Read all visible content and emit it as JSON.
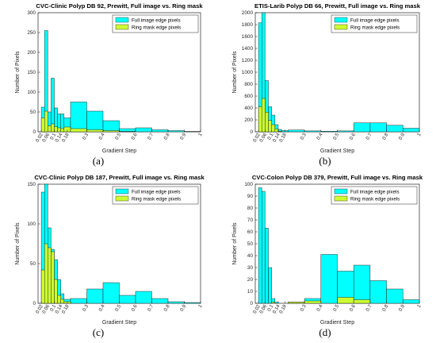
{
  "chart_data": [
    {
      "type": "bar",
      "title": "CVC-Clinic Polyp DB 92, Prewitt, Full image vs. Ring mask",
      "xlabel": "Gradient Step",
      "ylabel": "Number of Pixels",
      "caption": "(a)",
      "xlim": [
        0,
        1
      ],
      "ylim": [
        0,
        300
      ],
      "yticks": [
        0,
        50,
        100,
        150,
        200,
        250,
        300
      ],
      "xticks": [
        "0.02",
        "0.06",
        "0.1",
        "0.14",
        "0.18",
        "0.3",
        "0.4",
        "0.5",
        "0.6",
        "0.7",
        "0.8",
        "0.9",
        "1"
      ],
      "grid": false,
      "legend_position": "top-right",
      "series": [
        {
          "name": "Full image edge pixels",
          "color": "#00ffff",
          "bins": [
            [
              0.02,
              0.04,
              62
            ],
            [
              0.04,
              0.06,
              255
            ],
            [
              0.06,
              0.08,
              50
            ],
            [
              0.08,
              0.1,
              135
            ],
            [
              0.1,
              0.12,
              60
            ],
            [
              0.12,
              0.14,
              45
            ],
            [
              0.14,
              0.16,
              45
            ],
            [
              0.16,
              0.2,
              35
            ],
            [
              0.2,
              0.3,
              75
            ],
            [
              0.3,
              0.4,
              52
            ],
            [
              0.4,
              0.5,
              28
            ],
            [
              0.5,
              0.6,
              8
            ],
            [
              0.6,
              0.7,
              10
            ],
            [
              0.7,
              0.8,
              5
            ],
            [
              0.8,
              0.9,
              3
            ],
            [
              0.9,
              1.0,
              1
            ]
          ]
        },
        {
          "name": "Ring mask edge pixels",
          "color": "#ccff33",
          "bins": [
            [
              0.02,
              0.04,
              35
            ],
            [
              0.04,
              0.06,
              52
            ],
            [
              0.06,
              0.08,
              15
            ],
            [
              0.08,
              0.1,
              20
            ],
            [
              0.1,
              0.12,
              13
            ],
            [
              0.12,
              0.14,
              10
            ],
            [
              0.14,
              0.16,
              8
            ],
            [
              0.16,
              0.2,
              12
            ],
            [
              0.2,
              0.3,
              8
            ],
            [
              0.3,
              0.4,
              5
            ],
            [
              0.4,
              0.5,
              3
            ],
            [
              0.5,
              0.6,
              1
            ]
          ]
        }
      ]
    },
    {
      "type": "bar",
      "title": "ETIS-Larib Polyp DB 66, Prewitt, Full image vs. Ring mask",
      "xlabel": "Gradient Step",
      "ylabel": "Number of Pixels",
      "caption": "(b)",
      "xlim": [
        0,
        1
      ],
      "ylim": [
        0,
        2000
      ],
      "yticks": [
        0,
        200,
        400,
        600,
        800,
        1000,
        1200,
        1400,
        1600,
        1800,
        2000
      ],
      "xticks": [
        "0.02",
        "0.06",
        "0.1",
        "0.14",
        "0.18",
        "0.3",
        "0.4",
        "0.5",
        "0.6",
        "0.7",
        "0.8",
        "0.9",
        "1"
      ],
      "grid": false,
      "legend_position": "top-right",
      "series": [
        {
          "name": "Full image edge pixels",
          "color": "#00ffff",
          "bins": [
            [
              0.02,
              0.04,
              1830
            ],
            [
              0.04,
              0.06,
              2000
            ],
            [
              0.06,
              0.08,
              860
            ],
            [
              0.08,
              0.1,
              420
            ],
            [
              0.1,
              0.12,
              280
            ],
            [
              0.12,
              0.14,
              120
            ],
            [
              0.14,
              0.16,
              40
            ],
            [
              0.16,
              0.2,
              20
            ],
            [
              0.2,
              0.3,
              30
            ],
            [
              0.3,
              0.4,
              15
            ],
            [
              0.4,
              0.5,
              10
            ],
            [
              0.5,
              0.6,
              15
            ],
            [
              0.6,
              0.7,
              150
            ],
            [
              0.7,
              0.8,
              150
            ],
            [
              0.8,
              0.9,
              110
            ],
            [
              0.9,
              1.0,
              60
            ]
          ]
        },
        {
          "name": "Ring mask edge pixels",
          "color": "#ccff33",
          "bins": [
            [
              0.02,
              0.04,
              420
            ],
            [
              0.04,
              0.06,
              560
            ],
            [
              0.06,
              0.08,
              330
            ],
            [
              0.08,
              0.1,
              190
            ],
            [
              0.1,
              0.12,
              120
            ],
            [
              0.12,
              0.14,
              50
            ],
            [
              0.14,
              0.16,
              10
            ]
          ]
        }
      ]
    },
    {
      "type": "bar",
      "title": "CVC-Clinic Polyp DB 187, Prewitt, Full image vs. Ring mask",
      "xlabel": "Gradient Step",
      "ylabel": "Number of Pixels",
      "caption": "(c)",
      "xlim": [
        0,
        1
      ],
      "ylim": [
        0,
        150
      ],
      "yticks": [
        0,
        50,
        100,
        150
      ],
      "xticks": [
        "0.02",
        "0.06",
        "0.1",
        "0.14",
        "0.18",
        "0.3",
        "0.4",
        "0.5",
        "0.6",
        "0.7",
        "0.8",
        "0.9",
        "1"
      ],
      "grid": false,
      "legend_position": "top-right",
      "series": [
        {
          "name": "Full image edge pixels",
          "color": "#00ffff",
          "bins": [
            [
              0.02,
              0.04,
              140
            ],
            [
              0.04,
              0.06,
              150
            ],
            [
              0.06,
              0.08,
              95
            ],
            [
              0.08,
              0.1,
              68
            ],
            [
              0.1,
              0.12,
              55
            ],
            [
              0.12,
              0.14,
              30
            ],
            [
              0.14,
              0.16,
              12
            ],
            [
              0.16,
              0.2,
              5
            ],
            [
              0.2,
              0.3,
              6
            ],
            [
              0.3,
              0.4,
              18
            ],
            [
              0.4,
              0.5,
              26
            ],
            [
              0.5,
              0.6,
              10
            ],
            [
              0.6,
              0.7,
              15
            ],
            [
              0.7,
              0.8,
              6
            ],
            [
              0.8,
              0.9,
              2
            ],
            [
              0.9,
              1.0,
              1
            ]
          ]
        },
        {
          "name": "Ring mask edge pixels",
          "color": "#ccff33",
          "bins": [
            [
              0.02,
              0.04,
              42
            ],
            [
              0.04,
              0.06,
              75
            ],
            [
              0.06,
              0.08,
              70
            ],
            [
              0.08,
              0.1,
              65
            ],
            [
              0.1,
              0.12,
              30
            ],
            [
              0.12,
              0.14,
              10
            ],
            [
              0.14,
              0.16,
              5
            ],
            [
              0.16,
              0.2,
              2
            ]
          ]
        }
      ]
    },
    {
      "type": "bar",
      "title": "CVC-Colon Polyp DB 379, Prewitt, Full image vs. Ring mask",
      "xlabel": "Gradient Step",
      "ylabel": "Number of Pixels",
      "caption": "(d)",
      "xlim": [
        0,
        1
      ],
      "ylim": [
        0,
        100
      ],
      "yticks": [
        0,
        10,
        20,
        30,
        40,
        50,
        60,
        70,
        80,
        90,
        100
      ],
      "xticks": [
        "0.02",
        "0.06",
        "0.1",
        "0.14",
        "0.18",
        "0.3",
        "0.4",
        "0.5",
        "0.6",
        "0.7",
        "0.8",
        "0.9",
        "1"
      ],
      "grid": false,
      "legend_position": "top-right",
      "series": [
        {
          "name": "Full image edge pixels",
          "color": "#00ffff",
          "bins": [
            [
              0.02,
              0.04,
              97
            ],
            [
              0.04,
              0.06,
              94
            ],
            [
              0.06,
              0.08,
              63
            ],
            [
              0.08,
              0.1,
              30
            ],
            [
              0.1,
              0.12,
              4
            ],
            [
              0.12,
              0.14,
              1
            ],
            [
              0.14,
              0.2,
              0
            ],
            [
              0.2,
              0.3,
              1
            ],
            [
              0.3,
              0.4,
              4
            ],
            [
              0.4,
              0.5,
              41
            ],
            [
              0.5,
              0.6,
              27
            ],
            [
              0.6,
              0.7,
              32
            ],
            [
              0.7,
              0.8,
              19
            ],
            [
              0.8,
              0.9,
              12
            ],
            [
              0.9,
              1.0,
              3
            ]
          ]
        },
        {
          "name": "Ring mask edge pixels",
          "color": "#ccff33",
          "bins": [
            [
              0.1,
              0.12,
              1
            ],
            [
              0.2,
              0.3,
              1
            ],
            [
              0.3,
              0.4,
              2
            ],
            [
              0.5,
              0.6,
              5
            ],
            [
              0.6,
              0.7,
              3
            ]
          ]
        }
      ]
    }
  ]
}
